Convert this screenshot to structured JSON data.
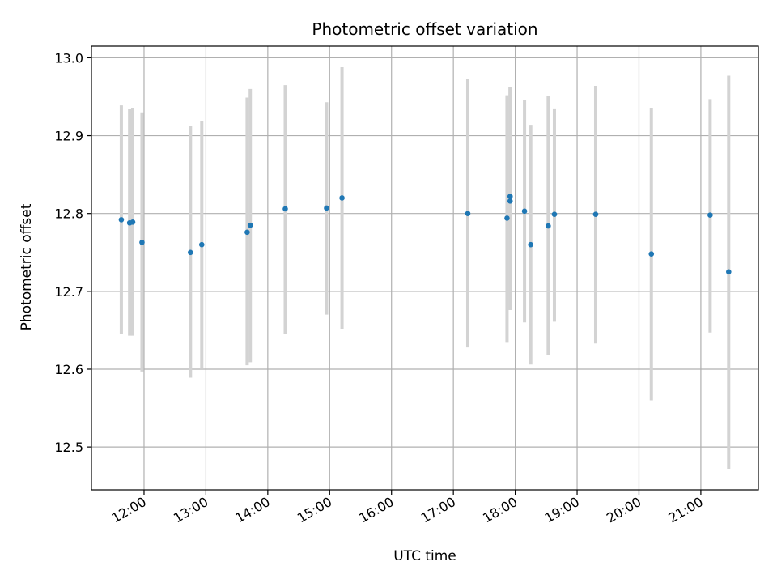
{
  "chart_data": {
    "type": "scatter",
    "title": "Photometric offset variation",
    "xlabel": "UTC time",
    "ylabel": "Photometric offset",
    "x_unit": "UTC hour of day",
    "xlim": [
      11.15,
      21.93
    ],
    "ylim": [
      12.445,
      13.015
    ],
    "x_ticks": [
      {
        "value": 12,
        "label": "12:00"
      },
      {
        "value": 13,
        "label": "13:00"
      },
      {
        "value": 14,
        "label": "14:00"
      },
      {
        "value": 15,
        "label": "15:00"
      },
      {
        "value": 16,
        "label": "16:00"
      },
      {
        "value": 17,
        "label": "17:00"
      },
      {
        "value": 18,
        "label": "18:00"
      },
      {
        "value": 19,
        "label": "19:00"
      },
      {
        "value": 20,
        "label": "20:00"
      },
      {
        "value": 21,
        "label": "21:00"
      }
    ],
    "y_ticks": [
      {
        "value": 12.5,
        "label": "12.5"
      },
      {
        "value": 12.6,
        "label": "12.6"
      },
      {
        "value": 12.7,
        "label": "12.7"
      },
      {
        "value": 12.8,
        "label": "12.8"
      },
      {
        "value": 12.9,
        "label": "12.9"
      },
      {
        "value": 13.0,
        "label": "13.0"
      }
    ],
    "grid": true,
    "colors": {
      "points": "#1f77b4",
      "errorbars": "#d3d3d3",
      "grid": "#b0b0b0"
    },
    "points": [
      {
        "x": 11.633,
        "y": 12.792,
        "low": 12.645,
        "high": 12.939
      },
      {
        "x": 11.767,
        "y": 12.788,
        "low": 12.643,
        "high": 12.934
      },
      {
        "x": 11.817,
        "y": 12.789,
        "low": 12.643,
        "high": 12.936
      },
      {
        "x": 11.967,
        "y": 12.763,
        "low": 12.597,
        "high": 12.93
      },
      {
        "x": 12.75,
        "y": 12.75,
        "low": 12.589,
        "high": 12.912
      },
      {
        "x": 12.933,
        "y": 12.76,
        "low": 12.602,
        "high": 12.919
      },
      {
        "x": 13.667,
        "y": 12.776,
        "low": 12.605,
        "high": 12.949
      },
      {
        "x": 13.717,
        "y": 12.785,
        "low": 12.609,
        "high": 12.96
      },
      {
        "x": 14.283,
        "y": 12.806,
        "low": 12.645,
        "high": 12.965
      },
      {
        "x": 14.95,
        "y": 12.807,
        "low": 12.67,
        "high": 12.943
      },
      {
        "x": 15.2,
        "y": 12.82,
        "low": 12.652,
        "high": 12.988
      },
      {
        "x": 17.233,
        "y": 12.8,
        "low": 12.628,
        "high": 12.973
      },
      {
        "x": 17.867,
        "y": 12.794,
        "low": 12.635,
        "high": 12.952
      },
      {
        "x": 17.917,
        "y": 12.822,
        "low": 12.676,
        "high": 12.963
      },
      {
        "x": 17.917,
        "y": 12.816,
        "low": 12.676,
        "high": 12.963
      },
      {
        "x": 18.15,
        "y": 12.803,
        "low": 12.66,
        "high": 12.946
      },
      {
        "x": 18.25,
        "y": 12.76,
        "low": 12.606,
        "high": 12.914
      },
      {
        "x": 18.533,
        "y": 12.784,
        "low": 12.618,
        "high": 12.951
      },
      {
        "x": 18.633,
        "y": 12.799,
        "low": 12.661,
        "high": 12.935
      },
      {
        "x": 19.3,
        "y": 12.799,
        "low": 12.633,
        "high": 12.964
      },
      {
        "x": 20.2,
        "y": 12.748,
        "low": 12.56,
        "high": 12.936
      },
      {
        "x": 21.15,
        "y": 12.798,
        "low": 12.647,
        "high": 12.947
      },
      {
        "x": 21.45,
        "y": 12.725,
        "low": 12.472,
        "high": 12.977
      }
    ]
  }
}
